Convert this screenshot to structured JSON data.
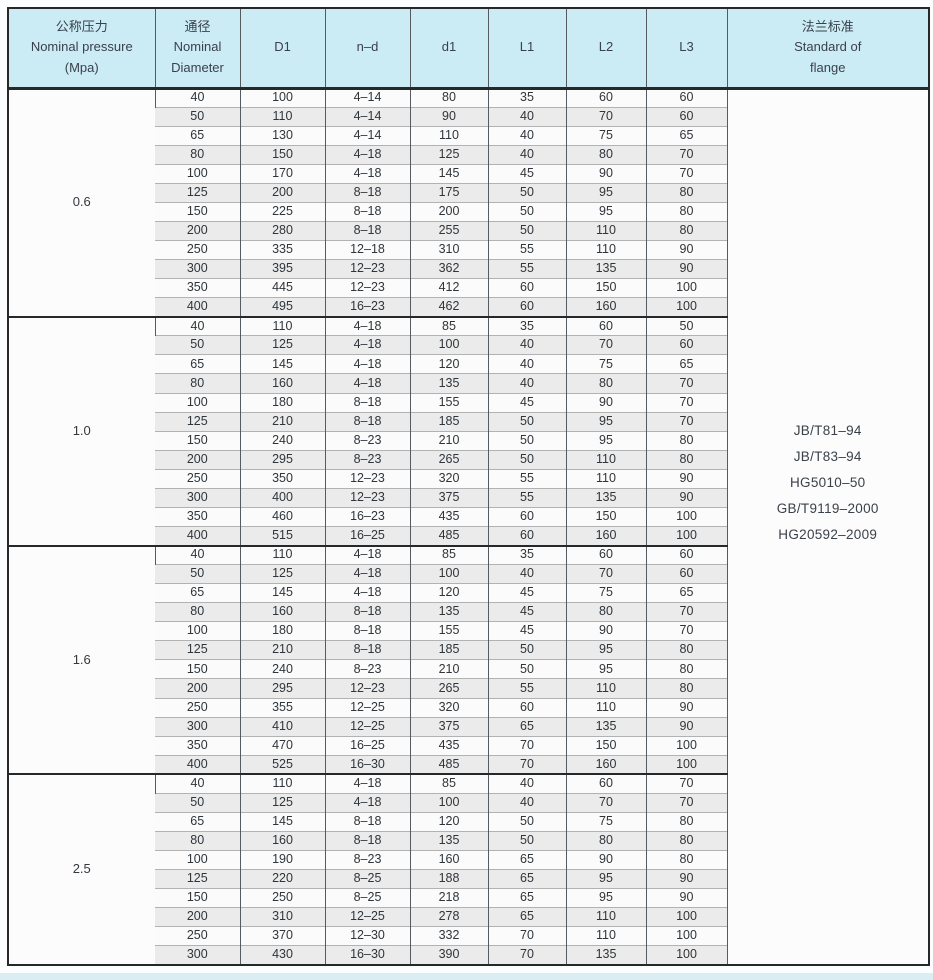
{
  "table": {
    "colors": {
      "header_bg": "#cbecf5",
      "row_bg": "#fbfbfb",
      "row_alt_bg": "#ebebeb",
      "border_dark": "#26282a",
      "border_column": "#565b60",
      "border_row": "#b2b2b2",
      "text": "#2f353a"
    },
    "header": {
      "pressure": [
        "公称压力",
        "Nominal pressure",
        "(Mpa)"
      ],
      "diameter": [
        "通径",
        "Nominal",
        "Diameter"
      ],
      "d1_outer": "D1",
      "n_d": "n–d",
      "d1_inner": "d1",
      "l1": "L1",
      "l2": "L2",
      "l3": "L3",
      "standard": [
        "法兰标准",
        "Standard of",
        "flange"
      ]
    },
    "standards": [
      "JB/T81–94",
      "JB/T83–94",
      "HG5010–50",
      "GB/T9119–2000",
      "HG20592–2009"
    ],
    "groups": [
      {
        "pressure": "0.6",
        "rows": [
          [
            "40",
            "100",
            "4–14",
            "80",
            "35",
            "60",
            "60"
          ],
          [
            "50",
            "110",
            "4–14",
            "90",
            "40",
            "70",
            "60"
          ],
          [
            "65",
            "130",
            "4–14",
            "110",
            "40",
            "75",
            "65"
          ],
          [
            "80",
            "150",
            "4–18",
            "125",
            "40",
            "80",
            "70"
          ],
          [
            "100",
            "170",
            "4–18",
            "145",
            "45",
            "90",
            "70"
          ],
          [
            "125",
            "200",
            "8–18",
            "175",
            "50",
            "95",
            "80"
          ],
          [
            "150",
            "225",
            "8–18",
            "200",
            "50",
            "95",
            "80"
          ],
          [
            "200",
            "280",
            "8–18",
            "255",
            "50",
            "110",
            "80"
          ],
          [
            "250",
            "335",
            "12–18",
            "310",
            "55",
            "110",
            "90"
          ],
          [
            "300",
            "395",
            "12–23",
            "362",
            "55",
            "135",
            "90"
          ],
          [
            "350",
            "445",
            "12–23",
            "412",
            "60",
            "150",
            "100"
          ],
          [
            "400",
            "495",
            "16–23",
            "462",
            "60",
            "160",
            "100"
          ]
        ]
      },
      {
        "pressure": "1.0",
        "rows": [
          [
            "40",
            "110",
            "4–18",
            "85",
            "35",
            "60",
            "50"
          ],
          [
            "50",
            "125",
            "4–18",
            "100",
            "40",
            "70",
            "60"
          ],
          [
            "65",
            "145",
            "4–18",
            "120",
            "40",
            "75",
            "65"
          ],
          [
            "80",
            "160",
            "4–18",
            "135",
            "40",
            "80",
            "70"
          ],
          [
            "100",
            "180",
            "8–18",
            "155",
            "45",
            "90",
            "70"
          ],
          [
            "125",
            "210",
            "8–18",
            "185",
            "50",
            "95",
            "70"
          ],
          [
            "150",
            "240",
            "8–23",
            "210",
            "50",
            "95",
            "80"
          ],
          [
            "200",
            "295",
            "8–23",
            "265",
            "50",
            "110",
            "80"
          ],
          [
            "250",
            "350",
            "12–23",
            "320",
            "55",
            "110",
            "90"
          ],
          [
            "300",
            "400",
            "12–23",
            "375",
            "55",
            "135",
            "90"
          ],
          [
            "350",
            "460",
            "16–23",
            "435",
            "60",
            "150",
            "100"
          ],
          [
            "400",
            "515",
            "16–25",
            "485",
            "60",
            "160",
            "100"
          ]
        ]
      },
      {
        "pressure": "1.6",
        "rows": [
          [
            "40",
            "110",
            "4–18",
            "85",
            "35",
            "60",
            "60"
          ],
          [
            "50",
            "125",
            "4–18",
            "100",
            "40",
            "70",
            "60"
          ],
          [
            "65",
            "145",
            "4–18",
            "120",
            "45",
            "75",
            "65"
          ],
          [
            "80",
            "160",
            "8–18",
            "135",
            "45",
            "80",
            "70"
          ],
          [
            "100",
            "180",
            "8–18",
            "155",
            "45",
            "90",
            "70"
          ],
          [
            "125",
            "210",
            "8–18",
            "185",
            "50",
            "95",
            "80"
          ],
          [
            "150",
            "240",
            "8–23",
            "210",
            "50",
            "95",
            "80"
          ],
          [
            "200",
            "295",
            "12–23",
            "265",
            "55",
            "110",
            "80"
          ],
          [
            "250",
            "355",
            "12–25",
            "320",
            "60",
            "110",
            "90"
          ],
          [
            "300",
            "410",
            "12–25",
            "375",
            "65",
            "135",
            "90"
          ],
          [
            "350",
            "470",
            "16–25",
            "435",
            "70",
            "150",
            "100"
          ],
          [
            "400",
            "525",
            "16–30",
            "485",
            "70",
            "160",
            "100"
          ]
        ]
      },
      {
        "pressure": "2.5",
        "rows": [
          [
            "40",
            "110",
            "4–18",
            "85",
            "40",
            "60",
            "70"
          ],
          [
            "50",
            "125",
            "4–18",
            "100",
            "40",
            "70",
            "70"
          ],
          [
            "65",
            "145",
            "8–18",
            "120",
            "50",
            "75",
            "80"
          ],
          [
            "80",
            "160",
            "8–18",
            "135",
            "50",
            "80",
            "80"
          ],
          [
            "100",
            "190",
            "8–23",
            "160",
            "65",
            "90",
            "80"
          ],
          [
            "125",
            "220",
            "8–25",
            "188",
            "65",
            "95",
            "90"
          ],
          [
            "150",
            "250",
            "8–25",
            "218",
            "65",
            "95",
            "90"
          ],
          [
            "200",
            "310",
            "12–25",
            "278",
            "65",
            "110",
            "100"
          ],
          [
            "250",
            "370",
            "12–30",
            "332",
            "70",
            "110",
            "100"
          ],
          [
            "300",
            "430",
            "16–30",
            "390",
            "70",
            "135",
            "100"
          ]
        ]
      }
    ]
  }
}
